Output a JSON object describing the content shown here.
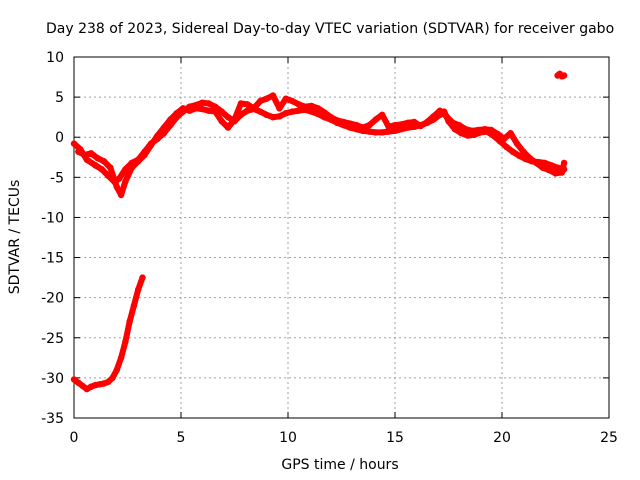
{
  "chart_data": {
    "type": "scatter",
    "title": "Day 238 of 2023, Sidereal Day-to-day VTEC variation (SDTVAR) for receiver gabo",
    "xlabel": "GPS time / hours",
    "ylabel": "SDTVAR / TECUs",
    "xlim": [
      0,
      25
    ],
    "ylim": [
      -35,
      10
    ],
    "xticks": [
      0,
      5,
      10,
      15,
      20,
      25
    ],
    "yticks": [
      -35,
      -30,
      -25,
      -20,
      -15,
      -10,
      -5,
      0,
      5,
      10
    ],
    "grid": true,
    "legend": "none",
    "series": [
      {
        "name": "upper-cluster-a",
        "color": "#ff0000",
        "points": [
          [
            0.0,
            -0.8
          ],
          [
            0.3,
            -1.5
          ],
          [
            0.6,
            -2.8
          ],
          [
            1.0,
            -3.5
          ],
          [
            1.3,
            -4.0
          ],
          [
            1.6,
            -4.8
          ],
          [
            1.9,
            -5.6
          ],
          [
            2.1,
            -5.2
          ],
          [
            2.4,
            -4.0
          ],
          [
            2.7,
            -3.2
          ],
          [
            3.0,
            -2.8
          ],
          [
            3.3,
            -1.8
          ],
          [
            3.6,
            -0.8
          ],
          [
            3.9,
            -0.2
          ],
          [
            4.2,
            0.5
          ],
          [
            4.5,
            1.5
          ],
          [
            4.8,
            2.5
          ],
          [
            5.1,
            3.2
          ],
          [
            5.4,
            3.8
          ],
          [
            5.7,
            4.0
          ],
          [
            6.0,
            4.3
          ],
          [
            6.3,
            4.2
          ],
          [
            6.6,
            3.8
          ],
          [
            6.9,
            3.2
          ],
          [
            7.2,
            2.5
          ],
          [
            7.5,
            2.0
          ],
          [
            7.8,
            2.8
          ],
          [
            8.1,
            3.3
          ],
          [
            8.4,
            3.5
          ],
          [
            8.7,
            3.2
          ],
          [
            9.0,
            2.8
          ],
          [
            9.3,
            2.5
          ],
          [
            9.6,
            2.6
          ],
          [
            9.9,
            3.0
          ],
          [
            10.2,
            3.2
          ],
          [
            10.5,
            3.3
          ],
          [
            10.8,
            3.4
          ],
          [
            11.1,
            3.2
          ],
          [
            11.4,
            2.9
          ],
          [
            11.7,
            2.5
          ],
          [
            12.0,
            2.2
          ],
          [
            12.3,
            1.8
          ],
          [
            12.6,
            1.5
          ],
          [
            12.9,
            1.2
          ],
          [
            13.2,
            1.0
          ],
          [
            13.5,
            0.8
          ],
          [
            13.8,
            0.7
          ],
          [
            14.1,
            0.6
          ],
          [
            14.4,
            0.6
          ],
          [
            14.7,
            0.7
          ],
          [
            15.0,
            0.8
          ],
          [
            15.3,
            1.0
          ],
          [
            15.6,
            1.2
          ],
          [
            15.9,
            1.3
          ],
          [
            16.2,
            1.5
          ],
          [
            16.5,
            1.8
          ],
          [
            16.8,
            2.2
          ],
          [
            17.1,
            2.8
          ],
          [
            17.3,
            3.2
          ],
          [
            17.5,
            2.0
          ],
          [
            17.8,
            1.0
          ],
          [
            18.1,
            0.5
          ],
          [
            18.4,
            0.2
          ],
          [
            18.7,
            0.3
          ],
          [
            19.0,
            0.6
          ],
          [
            19.3,
            0.7
          ],
          [
            19.6,
            0.2
          ],
          [
            19.9,
            -0.5
          ],
          [
            20.2,
            -1.2
          ],
          [
            20.5,
            -1.8
          ],
          [
            20.8,
            -2.3
          ],
          [
            21.1,
            -2.7
          ],
          [
            21.4,
            -3.0
          ],
          [
            21.7,
            -3.1
          ],
          [
            22.0,
            -3.2
          ],
          [
            22.3,
            -3.5
          ],
          [
            22.6,
            -3.8
          ],
          [
            22.9,
            -4.0
          ]
        ]
      },
      {
        "name": "upper-cluster-b",
        "color": "#ff0000",
        "points": [
          [
            0.2,
            -1.8
          ],
          [
            0.5,
            -2.2
          ],
          [
            0.8,
            -2.0
          ],
          [
            1.1,
            -2.6
          ],
          [
            1.4,
            -3.0
          ],
          [
            1.7,
            -3.8
          ],
          [
            2.0,
            -6.2
          ],
          [
            2.2,
            -7.2
          ],
          [
            2.4,
            -5.5
          ],
          [
            2.7,
            -3.8
          ],
          [
            3.0,
            -3.0
          ],
          [
            3.3,
            -2.2
          ],
          [
            3.6,
            -1.0
          ],
          [
            3.9,
            0.2
          ],
          [
            4.2,
            1.2
          ],
          [
            4.5,
            2.2
          ],
          [
            4.8,
            3.0
          ],
          [
            5.1,
            3.6
          ],
          [
            5.4,
            3.3
          ],
          [
            5.7,
            3.6
          ],
          [
            6.0,
            3.5
          ],
          [
            6.3,
            3.3
          ],
          [
            6.6,
            3.2
          ],
          [
            6.9,
            2.0
          ],
          [
            7.2,
            1.2
          ],
          [
            7.5,
            2.2
          ],
          [
            7.8,
            4.2
          ],
          [
            8.1,
            4.1
          ],
          [
            8.4,
            3.6
          ],
          [
            8.7,
            4.5
          ],
          [
            9.0,
            4.8
          ],
          [
            9.3,
            5.2
          ],
          [
            9.6,
            3.6
          ],
          [
            9.9,
            4.8
          ],
          [
            10.2,
            4.5
          ],
          [
            10.5,
            4.1
          ],
          [
            10.8,
            3.8
          ],
          [
            11.1,
            3.9
          ],
          [
            11.4,
            3.6
          ],
          [
            11.7,
            3.1
          ],
          [
            12.0,
            2.5
          ],
          [
            12.3,
            2.1
          ],
          [
            12.6,
            1.9
          ],
          [
            12.9,
            1.7
          ],
          [
            13.2,
            1.5
          ],
          [
            13.5,
            1.2
          ],
          [
            13.8,
            1.5
          ],
          [
            14.1,
            2.2
          ],
          [
            14.4,
            2.8
          ],
          [
            14.7,
            1.3
          ],
          [
            15.0,
            1.5
          ],
          [
            15.3,
            1.6
          ],
          [
            15.6,
            1.8
          ],
          [
            15.9,
            1.9
          ],
          [
            16.2,
            1.4
          ],
          [
            16.5,
            1.9
          ],
          [
            16.8,
            2.6
          ],
          [
            17.1,
            3.3
          ],
          [
            17.4,
            2.6
          ],
          [
            17.7,
            1.8
          ],
          [
            18.0,
            1.5
          ],
          [
            18.3,
            1.0
          ],
          [
            18.6,
            0.8
          ],
          [
            18.9,
            0.9
          ],
          [
            19.2,
            1.0
          ],
          [
            19.5,
            0.9
          ],
          [
            19.8,
            0.4
          ],
          [
            20.1,
            -0.2
          ],
          [
            20.4,
            0.5
          ],
          [
            20.7,
            -0.8
          ],
          [
            21.0,
            -1.8
          ],
          [
            21.3,
            -2.6
          ],
          [
            21.6,
            -3.2
          ],
          [
            21.9,
            -3.8
          ],
          [
            22.2,
            -4.1
          ],
          [
            22.5,
            -4.5
          ],
          [
            22.8,
            -4.4
          ],
          [
            22.9,
            -3.2
          ]
        ]
      },
      {
        "name": "lower-track",
        "color": "#ff0000",
        "points": [
          [
            0.0,
            -30.2
          ],
          [
            0.2,
            -30.6
          ],
          [
            0.4,
            -31.0
          ],
          [
            0.6,
            -31.4
          ],
          [
            0.8,
            -31.1
          ],
          [
            1.0,
            -30.9
          ],
          [
            1.2,
            -30.8
          ],
          [
            1.4,
            -30.7
          ],
          [
            1.6,
            -30.5
          ],
          [
            1.8,
            -30.0
          ],
          [
            2.0,
            -29.0
          ],
          [
            2.2,
            -27.5
          ],
          [
            2.4,
            -25.5
          ],
          [
            2.6,
            -23.0
          ],
          [
            2.8,
            -21.0
          ],
          [
            3.0,
            -19.0
          ],
          [
            3.2,
            -17.5
          ]
        ]
      },
      {
        "name": "late-isolated",
        "color": "#ff0000",
        "points": [
          [
            22.6,
            7.7
          ],
          [
            22.7,
            7.9
          ],
          [
            22.8,
            7.6
          ],
          [
            22.9,
            7.7
          ]
        ]
      }
    ]
  }
}
